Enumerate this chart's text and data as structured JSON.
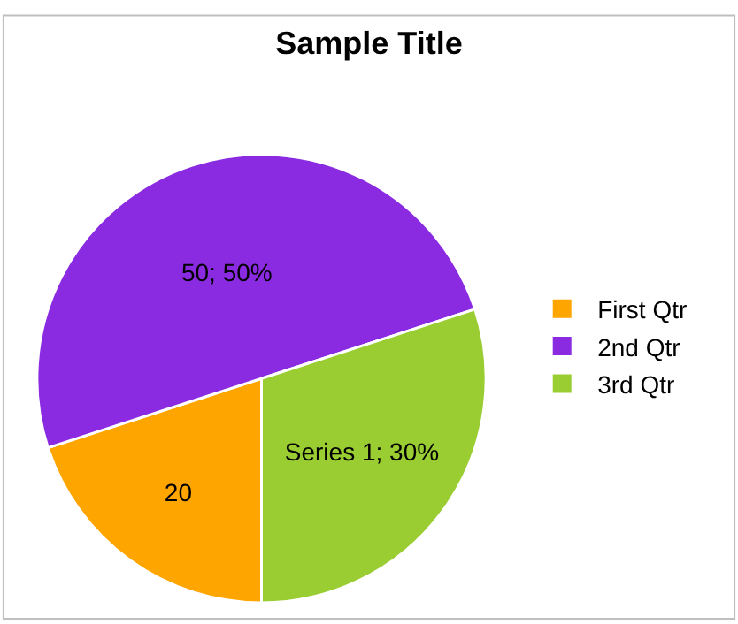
{
  "chart_data": {
    "type": "pie",
    "title": "Sample Title",
    "categories": [
      "First Qtr",
      "2nd Qtr",
      "3rd Qtr"
    ],
    "values": [
      20,
      50,
      30
    ],
    "colors": [
      "#ffa500",
      "#8a2be2",
      "#9acd32"
    ],
    "value_labels": [
      "20",
      "50; 50%",
      "Series 1; 30%"
    ],
    "legend": "right"
  }
}
